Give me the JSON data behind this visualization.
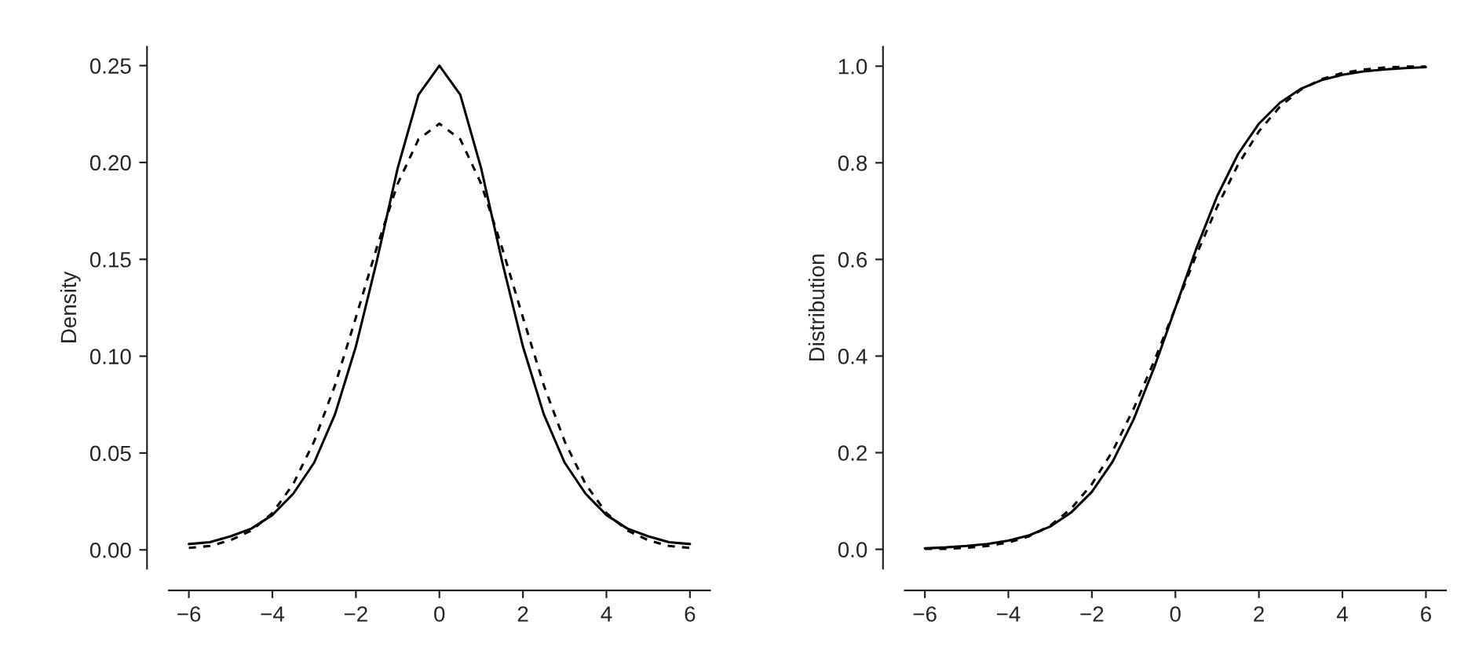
{
  "chart_data": [
    {
      "type": "line",
      "ylabel": "Density",
      "x": [
        -6,
        -5.5,
        -5,
        -4.5,
        -4,
        -3.5,
        -3,
        -2.5,
        -2,
        -1.5,
        -1,
        -0.5,
        0,
        0.5,
        1,
        1.5,
        2,
        2.5,
        3,
        3.5,
        4,
        4.5,
        5,
        5.5,
        6
      ],
      "series": [
        {
          "color": "#000000",
          "line_style": "solid",
          "values": [
            0.003,
            0.004,
            0.007,
            0.011,
            0.018,
            0.029,
            0.045,
            0.07,
            0.105,
            0.149,
            0.197,
            0.235,
            0.25,
            0.235,
            0.197,
            0.149,
            0.105,
            0.07,
            0.045,
            0.029,
            0.018,
            0.011,
            0.007,
            0.004,
            0.003
          ]
        },
        {
          "color": "#000000",
          "line_style": "dashed",
          "values": [
            0.001,
            0.002,
            0.005,
            0.01,
            0.019,
            0.034,
            0.056,
            0.085,
            0.12,
            0.156,
            0.189,
            0.212,
            0.22,
            0.212,
            0.189,
            0.156,
            0.12,
            0.085,
            0.056,
            0.034,
            0.019,
            0.01,
            0.005,
            0.002,
            0.001
          ]
        }
      ],
      "xlim": [
        -6.48,
        6.48
      ],
      "ylim": [
        -0.0097,
        0.2597
      ],
      "xticks": [
        {
          "value": -6,
          "label": "−6"
        },
        {
          "value": -4,
          "label": "−4"
        },
        {
          "value": -2,
          "label": "−2"
        },
        0,
        2,
        4,
        6
      ],
      "yticks": [
        {
          "value": 0,
          "label": "0.00"
        },
        {
          "value": 0.05,
          "label": "0.05"
        },
        {
          "value": 0.1,
          "label": "0.10"
        },
        {
          "value": 0.15,
          "label": "0.15"
        },
        {
          "value": 0.2,
          "label": "0.20"
        },
        {
          "value": 0.25,
          "label": "0.25"
        }
      ],
      "grid": false
    },
    {
      "type": "line",
      "ylabel": "Distribution",
      "x": [
        -6,
        -5.5,
        -5,
        -4.5,
        -4,
        -3.5,
        -3,
        -2.5,
        -2,
        -1.5,
        -1,
        -0.5,
        0,
        0.5,
        1,
        1.5,
        2,
        2.5,
        3,
        3.5,
        4,
        4.5,
        5,
        5.5,
        6
      ],
      "series": [
        {
          "color": "#000000",
          "line_style": "solid",
          "values": [
            0.002,
            0.004,
            0.007,
            0.011,
            0.018,
            0.029,
            0.047,
            0.076,
            0.119,
            0.182,
            0.269,
            0.378,
            0.5,
            0.622,
            0.731,
            0.818,
            0.881,
            0.924,
            0.953,
            0.971,
            0.982,
            0.989,
            0.993,
            0.996,
            0.998
          ]
        },
        {
          "color": "#000000",
          "line_style": "dashed",
          "values": [
            0.001,
            0.001,
            0.003,
            0.007,
            0.014,
            0.027,
            0.049,
            0.084,
            0.135,
            0.204,
            0.291,
            0.391,
            0.5,
            0.609,
            0.709,
            0.796,
            0.865,
            0.916,
            0.951,
            0.973,
            0.986,
            0.993,
            0.997,
            0.999,
            0.999
          ]
        }
      ],
      "xlim": [
        -6.48,
        6.48
      ],
      "ylim": [
        -0.04,
        1.04
      ],
      "xticks": [
        {
          "value": -6,
          "label": "−6"
        },
        {
          "value": -4,
          "label": "−4"
        },
        {
          "value": -2,
          "label": "−2"
        },
        0,
        2,
        4,
        6
      ],
      "yticks": [
        {
          "value": 0,
          "label": "0.0"
        },
        {
          "value": 0.2,
          "label": "0.2"
        },
        {
          "value": 0.4,
          "label": "0.4"
        },
        {
          "value": 0.6,
          "label": "0.6"
        },
        {
          "value": 0.8,
          "label": "0.8"
        },
        {
          "value": 1,
          "label": "1.0"
        }
      ],
      "grid": false
    }
  ]
}
